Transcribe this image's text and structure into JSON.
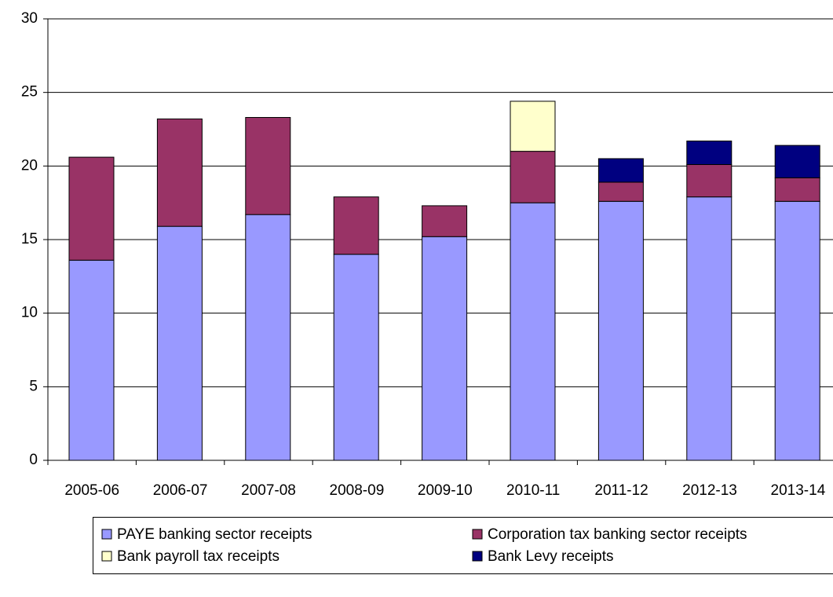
{
  "chart_data": {
    "type": "stacked_bar",
    "categories": [
      "2005-06",
      "2006-07",
      "2007-08",
      "2008-09",
      "2009-10",
      "2010-11",
      "2011-12",
      "2012-13",
      "2013-14"
    ],
    "series": [
      {
        "name": "PAYE banking sector receipts",
        "color": "#9999ff",
        "values": [
          13.6,
          15.9,
          16.7,
          14.0,
          15.2,
          17.5,
          17.6,
          17.9,
          17.6
        ]
      },
      {
        "name": "Corporation tax banking sector receipts",
        "color": "#993366",
        "values": [
          7.0,
          7.3,
          6.6,
          3.9,
          2.1,
          3.5,
          1.3,
          2.2,
          1.6
        ]
      },
      {
        "name": "Bank payroll tax receipts",
        "color": "#ffffcc",
        "values": [
          null,
          null,
          null,
          null,
          null,
          3.4,
          null,
          null,
          null
        ]
      },
      {
        "name": "Bank Levy receipts",
        "color": "#000080",
        "values": [
          null,
          null,
          null,
          null,
          null,
          null,
          1.6,
          1.6,
          2.2
        ]
      }
    ],
    "ylim": [
      0,
      30
    ],
    "yticks": [
      0,
      5,
      10,
      15,
      20,
      25,
      30
    ],
    "grid": true,
    "legend": "bottom"
  }
}
